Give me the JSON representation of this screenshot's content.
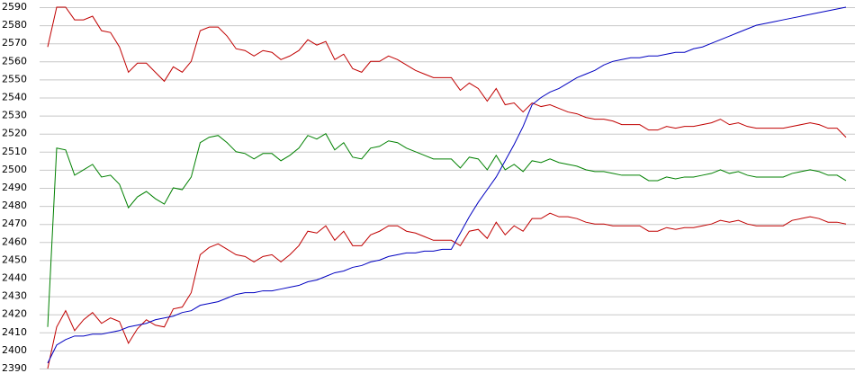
{
  "chart_data": {
    "type": "line",
    "ylim": [
      2390,
      2590
    ],
    "yticks": [
      2390,
      2400,
      2410,
      2420,
      2430,
      2440,
      2450,
      2460,
      2470,
      2480,
      2490,
      2500,
      2510,
      2520,
      2530,
      2540,
      2550,
      2560,
      2570,
      2580,
      2590
    ],
    "grid": true,
    "series": [
      {
        "color": "#c00000",
        "values": [
          2568,
          2590,
          2590,
          2583,
          2583,
          2585,
          2577,
          2576,
          2568,
          2554,
          2559,
          2559,
          2554,
          2549,
          2557,
          2554,
          2560,
          2577,
          2579,
          2579,
          2574,
          2567,
          2566,
          2563,
          2566,
          2565,
          2561,
          2563,
          2566,
          2572,
          2569,
          2571,
          2561,
          2564,
          2556,
          2554,
          2560,
          2560,
          2563,
          2561,
          2558,
          2555,
          2553,
          2551,
          2551,
          2551,
          2544,
          2548,
          2545,
          2538,
          2545,
          2536,
          2537,
          2532,
          2537,
          2535,
          2536,
          2534,
          2532,
          2531,
          2529,
          2528,
          2528,
          2527,
          2525,
          2525,
          2525,
          2522,
          2522,
          2524,
          2523,
          2524,
          2524,
          2525,
          2526,
          2528,
          2525,
          2526,
          2524,
          2523,
          2523,
          2523,
          2523,
          2524,
          2525,
          2526,
          2525,
          2523,
          2523,
          2518
        ]
      },
      {
        "color": "#008000",
        "values": [
          2413,
          2512,
          2511,
          2497,
          2500,
          2503,
          2496,
          2497,
          2492,
          2479,
          2485,
          2488,
          2484,
          2481,
          2490,
          2489,
          2496,
          2515,
          2518,
          2519,
          2515,
          2510,
          2509,
          2506,
          2509,
          2509,
          2505,
          2508,
          2512,
          2519,
          2517,
          2520,
          2511,
          2515,
          2507,
          2506,
          2512,
          2513,
          2516,
          2515,
          2512,
          2510,
          2508,
          2506,
          2506,
          2506,
          2501,
          2507,
          2506,
          2500,
          2508,
          2500,
          2503,
          2499,
          2505,
          2504,
          2506,
          2504,
          2503,
          2502,
          2500,
          2499,
          2499,
          2498,
          2497,
          2497,
          2497,
          2494,
          2494,
          2496,
          2495,
          2496,
          2496,
          2497,
          2498,
          2500,
          2498,
          2499,
          2497,
          2496,
          2496,
          2496,
          2496,
          2498,
          2499,
          2500,
          2499,
          2497,
          2497,
          2494
        ]
      },
      {
        "color": "#c00000",
        "values": [
          2390,
          2413,
          2422,
          2411,
          2417,
          2421,
          2415,
          2418,
          2416,
          2404,
          2412,
          2417,
          2414,
          2413,
          2423,
          2424,
          2432,
          2453,
          2457,
          2459,
          2456,
          2453,
          2452,
          2449,
          2452,
          2453,
          2449,
          2453,
          2458,
          2466,
          2465,
          2469,
          2461,
          2466,
          2458,
          2458,
          2464,
          2466,
          2469,
          2469,
          2466,
          2465,
          2463,
          2461,
          2461,
          2461,
          2458,
          2466,
          2467,
          2462,
          2471,
          2464,
          2469,
          2466,
          2473,
          2473,
          2476,
          2474,
          2474,
          2473,
          2471,
          2470,
          2470,
          2469,
          2469,
          2469,
          2469,
          2466,
          2466,
          2468,
          2467,
          2468,
          2468,
          2469,
          2470,
          2472,
          2471,
          2472,
          2470,
          2469,
          2469,
          2469,
          2469,
          2472,
          2473,
          2474,
          2473,
          2471,
          2471,
          2470
        ]
      },
      {
        "color": "#0000c0",
        "values": [
          2393,
          2403,
          2406,
          2408,
          2408,
          2409,
          2409,
          2410,
          2411,
          2413,
          2414,
          2415,
          2417,
          2418,
          2419,
          2421,
          2422,
          2425,
          2426,
          2427,
          2429,
          2431,
          2432,
          2432,
          2433,
          2433,
          2434,
          2435,
          2436,
          2438,
          2439,
          2441,
          2443,
          2444,
          2446,
          2447,
          2449,
          2450,
          2452,
          2453,
          2454,
          2454,
          2455,
          2455,
          2456,
          2456,
          2465,
          2474,
          2482,
          2489,
          2496,
          2505,
          2514,
          2524,
          2536,
          2540,
          2543,
          2545,
          2548,
          2551,
          2553,
          2555,
          2558,
          2560,
          2561,
          2562,
          2562,
          2563,
          2563,
          2564,
          2565,
          2565,
          2567,
          2568,
          2570,
          2572,
          2574,
          2576,
          2578,
          2580,
          2581,
          2582,
          2583,
          2584,
          2585,
          2586,
          2587,
          2588,
          2589,
          2590
        ]
      }
    ]
  }
}
